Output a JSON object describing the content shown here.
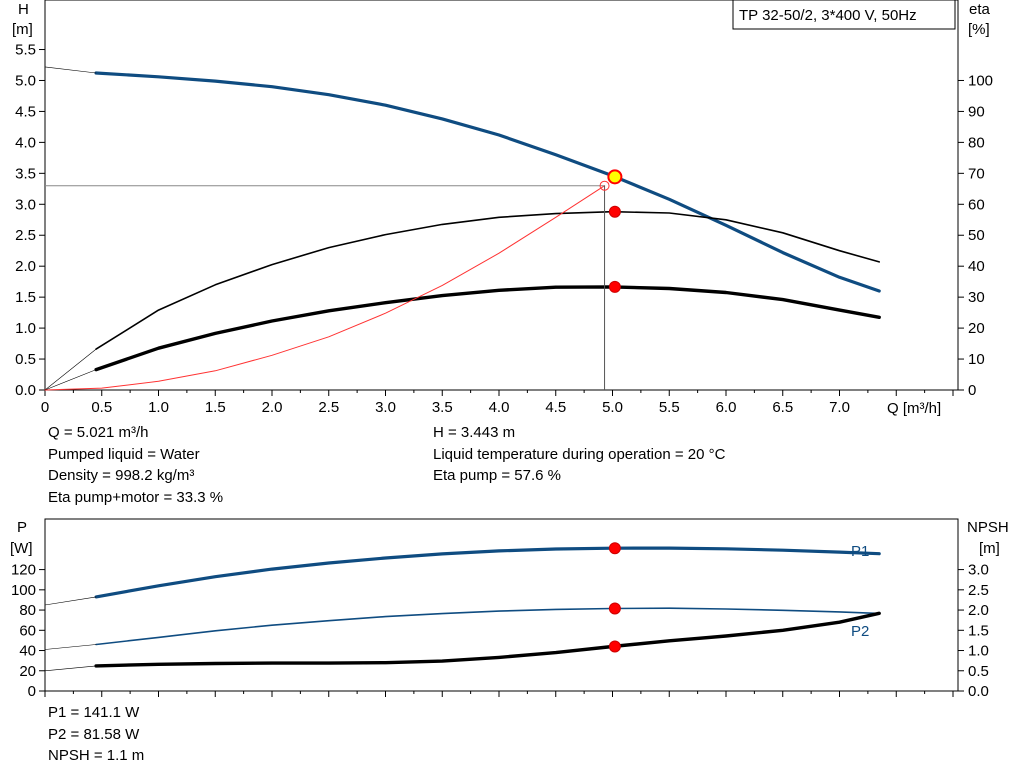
{
  "info_top": {
    "left": [
      "Q = 5.021 m³/h",
      "Pumped liquid = Water",
      "Density = 998.2 kg/m³",
      "Eta pump+motor = 33.3 %"
    ],
    "right": [
      "H = 3.443 m",
      "Liquid temperature during operation = 20 °C",
      "Eta pump = 57.6 %"
    ]
  },
  "info_bottom": [
    "P1 = 141.1 W",
    "P2 = 81.58 W",
    "NPSH = 1.1 m"
  ],
  "colors": {
    "curve_blue": "#0f4c81",
    "system_red": "#ff3333",
    "marker_red": "#ff0000",
    "marker_yellow": "#ffff00",
    "axis": "#000000"
  },
  "chart_data": [
    {
      "type": "line",
      "title": "TP 32-50/2, 3*400 V, 50Hz",
      "xlabel": "Q [m³/h]",
      "ylabel_left": [
        "H",
        "[m]"
      ],
      "ylabel_right": [
        "eta",
        "[%]"
      ],
      "xlim": [
        0,
        8.0
      ],
      "ylim_left": [
        0,
        6.3
      ],
      "ylim_right": [
        0,
        126
      ],
      "x_ticks": [
        "0",
        "0.5",
        "1.0",
        "1.5",
        "2.0",
        "2.5",
        "3.0",
        "3.5",
        "4.0",
        "4.5",
        "5.0",
        "5.5",
        "6.0",
        "6.5",
        "7.0"
      ],
      "left_ticks": [
        "0.0",
        "0.5",
        "1.0",
        "1.5",
        "2.0",
        "2.5",
        "3.0",
        "3.5",
        "4.0",
        "4.5",
        "5.0",
        "5.5"
      ],
      "right_ticks": [
        "0",
        "10",
        "20",
        "30",
        "40",
        "50",
        "60",
        "70",
        "80",
        "90",
        "100"
      ],
      "series": [
        {
          "key": "H",
          "axis": "left",
          "style": "blue",
          "x": [
            0.45,
            1.0,
            1.5,
            2.0,
            2.5,
            3.0,
            3.5,
            4.0,
            4.5,
            5.0,
            5.5,
            6.0,
            6.5,
            7.0,
            7.35
          ],
          "y": [
            5.12,
            5.06,
            4.99,
            4.9,
            4.77,
            4.6,
            4.38,
            4.12,
            3.8,
            3.46,
            3.08,
            2.66,
            2.22,
            1.82,
            1.6
          ]
        },
        {
          "key": "H_ext",
          "axis": "left",
          "style": "thin",
          "x": [
            0.0,
            0.45
          ],
          "y": [
            5.22,
            5.12
          ]
        },
        {
          "key": "eta_pump",
          "axis": "right",
          "style": "black-thin",
          "x": [
            0.45,
            1.0,
            1.5,
            2.0,
            2.5,
            3.0,
            3.5,
            4.0,
            4.5,
            5.0,
            5.5,
            6.0,
            6.5,
            7.0,
            7.35
          ],
          "y": [
            13.2,
            25.8,
            34.0,
            40.5,
            46.0,
            50.2,
            53.5,
            55.8,
            57.0,
            57.6,
            57.2,
            55.0,
            50.8,
            45.0,
            41.4
          ]
        },
        {
          "key": "eta_pump_ext",
          "axis": "right",
          "style": "thin",
          "x": [
            0.0,
            0.45
          ],
          "y": [
            0.0,
            13.2
          ]
        },
        {
          "key": "eta_total",
          "axis": "right",
          "style": "black-thick",
          "x": [
            0.45,
            1.0,
            1.5,
            2.0,
            2.5,
            3.0,
            3.5,
            4.0,
            4.5,
            5.0,
            5.5,
            6.0,
            6.5,
            7.0,
            7.35
          ],
          "y": [
            6.6,
            13.5,
            18.3,
            22.3,
            25.6,
            28.2,
            30.5,
            32.2,
            33.2,
            33.3,
            32.8,
            31.5,
            29.2,
            25.8,
            23.5
          ]
        },
        {
          "key": "eta_total_ext",
          "axis": "right",
          "style": "thin",
          "x": [
            0.0,
            0.45
          ],
          "y": [
            0.0,
            6.6
          ]
        },
        {
          "key": "system",
          "axis": "left",
          "style": "red",
          "x": [
            0.0,
            0.5,
            1.0,
            1.5,
            2.0,
            2.5,
            3.0,
            3.5,
            4.0,
            4.5,
            4.93
          ],
          "y": [
            0.0,
            0.03,
            0.14,
            0.31,
            0.56,
            0.86,
            1.24,
            1.69,
            2.21,
            2.79,
            3.3
          ]
        }
      ],
      "guide": {
        "q": 4.93,
        "h": 3.3
      },
      "duty_marker": {
        "x": 5.021,
        "y": 3.443
      },
      "point_markers": [
        {
          "x": 5.021,
          "y": 57.6,
          "axis": "right"
        },
        {
          "x": 5.021,
          "y": 33.3,
          "axis": "right"
        }
      ]
    },
    {
      "type": "line",
      "ylabel_left": [
        "P",
        "[W]"
      ],
      "ylabel_right": [
        "NPSH",
        "[m]"
      ],
      "xlim": [
        0,
        8.0
      ],
      "ylim_left": [
        0,
        170
      ],
      "ylim_right": [
        0,
        4.25
      ],
      "left_ticks": [
        "0",
        "20",
        "40",
        "60",
        "80",
        "100",
        "120"
      ],
      "right_ticks": [
        "0.0",
        "0.5",
        "1.0",
        "1.5",
        "2.0",
        "2.5",
        "3.0"
      ],
      "series": [
        {
          "key": "P1",
          "name": "P1",
          "axis": "left",
          "style": "blue-thick",
          "x": [
            0.45,
            1.0,
            1.5,
            2.0,
            2.5,
            3.0,
            3.5,
            4.0,
            4.5,
            5.0,
            5.5,
            6.0,
            6.5,
            7.0,
            7.35
          ],
          "y": [
            93.0,
            104.0,
            113.0,
            120.5,
            126.5,
            131.5,
            135.5,
            138.5,
            140.3,
            141.1,
            141.2,
            140.5,
            139.2,
            137.3,
            135.7
          ]
        },
        {
          "key": "P1_ext",
          "axis": "left",
          "style": "thin",
          "x": [
            0.0,
            0.45
          ],
          "y": [
            85.0,
            93.0
          ]
        },
        {
          "key": "P2",
          "name": "P2",
          "axis": "left",
          "style": "blue-thin",
          "x": [
            0.45,
            1.0,
            1.5,
            2.0,
            2.5,
            3.0,
            3.5,
            4.0,
            4.5,
            5.0,
            5.5,
            6.0,
            6.5,
            7.0,
            7.35
          ],
          "y": [
            46.0,
            53.0,
            59.5,
            65.0,
            69.5,
            73.5,
            76.5,
            79.0,
            80.7,
            81.58,
            81.8,
            81.0,
            79.8,
            78.2,
            76.7
          ]
        },
        {
          "key": "P2_ext",
          "axis": "left",
          "style": "thin",
          "x": [
            0.0,
            0.45
          ],
          "y": [
            41.0,
            46.0
          ]
        },
        {
          "key": "NPSH",
          "axis": "right",
          "style": "black-thick",
          "x": [
            0.45,
            1.0,
            1.5,
            2.0,
            2.5,
            3.0,
            3.5,
            4.0,
            4.5,
            5.0,
            5.5,
            6.0,
            6.5,
            7.0,
            7.35
          ],
          "y": [
            0.62,
            0.66,
            0.68,
            0.69,
            0.69,
            0.7,
            0.74,
            0.83,
            0.95,
            1.1,
            1.24,
            1.36,
            1.5,
            1.7,
            1.92
          ]
        },
        {
          "key": "NPSH_ext",
          "axis": "right",
          "style": "thin",
          "x": [
            0.0,
            0.45
          ],
          "y": [
            0.5,
            0.62
          ]
        }
      ],
      "point_markers": [
        {
          "x": 5.021,
          "y": 141.1,
          "axis": "left"
        },
        {
          "x": 5.021,
          "y": 81.58,
          "axis": "left"
        },
        {
          "x": 5.021,
          "y": 1.1,
          "axis": "right"
        }
      ]
    }
  ]
}
